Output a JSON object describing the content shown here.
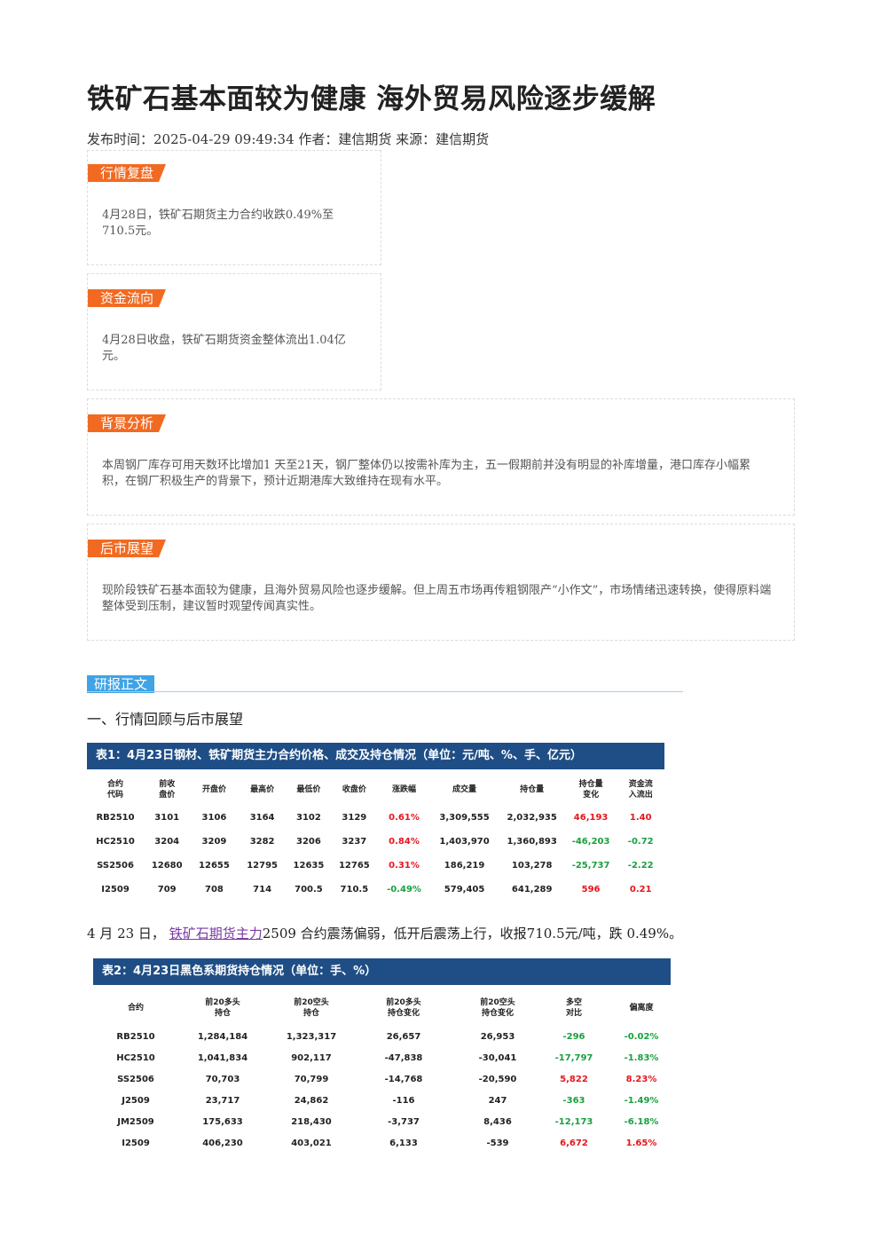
{
  "article": {
    "title": "铁矿石基本面较为健康 海外贸易风险逐步缓解",
    "meta": "发布时间：2025-04-29 09:49:34 作者：建信期货 来源：建信期货"
  },
  "sections": {
    "market_review": {
      "tag": "行情复盘",
      "text": "4月28日，铁矿石期货主力合约收跌0.49%至710.5元。"
    },
    "fund_flow": {
      "tag": "资金流向",
      "text": "4月28日收盘，铁矿石期货资金整体流出1.04亿元。"
    },
    "background": {
      "tag": "背景分析",
      "text": "本周钢厂库存可用天数环比增加1 天至21天，钢厂整体仍以按需补库为主，五一假期前并没有明显的补库增量，港口库存小幅累积，在钢厂积极生产的背景下，预计近期港库大致维持在现有水平。"
    },
    "outlook": {
      "tag": "后市展望",
      "text": "现阶段铁矿石基本面较为健康，且海外贸易风险也逐步缓解。但上周五市场再传粗钢限产“小作文”，市场情绪迅速转换，使得原料端整体受到压制，建议暂时观望传闻真实性。"
    }
  },
  "report": {
    "tab": "研报正文",
    "heading": "一、行情回顾与后市展望",
    "para_prefix": "4 月 23 日，",
    "para_link": "铁矿石期货主力",
    "para_suffix": "2509 合约震荡偏弱，低开后震荡上行，收报710.5元/吨，跌 0.49%。"
  },
  "table1": {
    "title": "表1：4月23日钢材、铁矿期货主力合约价格、成交及持仓情况（单位：元/吨、%、手、亿元）",
    "headers": [
      "合约\n代码",
      "前收\n盘价",
      "开盘价",
      "最高价",
      "最低价",
      "收盘价",
      "涨跌幅",
      "成交量",
      "持仓量",
      "持仓量\n变化",
      "资金流\n入流出"
    ],
    "rows": [
      [
        "RB2510",
        "3101",
        "3106",
        "3164",
        "3102",
        "3129",
        "0.61%",
        "3,309,555",
        "2,032,935",
        "46,193",
        "1.40"
      ],
      [
        "HC2510",
        "3204",
        "3209",
        "3282",
        "3206",
        "3237",
        "0.84%",
        "1,403,970",
        "1,360,893",
        "-46,203",
        "-0.72"
      ],
      [
        "SS2506",
        "12680",
        "12655",
        "12795",
        "12635",
        "12765",
        "0.31%",
        "186,219",
        "103,278",
        "-25,737",
        "-2.22"
      ],
      [
        "I2509",
        "709",
        "708",
        "714",
        "700.5",
        "710.5",
        "-0.49%",
        "579,405",
        "641,289",
        "596",
        "0.21"
      ]
    ]
  },
  "table2": {
    "title": "表2：4月23日黑色系期货持仓情况（单位：手、%）",
    "headers": [
      "合约",
      "前20多头\n持仓",
      "前20空头\n持仓",
      "前20多头\n持仓变化",
      "前20空头\n持仓变化",
      "多空\n对比",
      "偏离度"
    ],
    "rows": [
      [
        "RB2510",
        "1,284,184",
        "1,323,317",
        "26,657",
        "26,953",
        "-296",
        "-0.02%"
      ],
      [
        "HC2510",
        "1,041,834",
        "902,117",
        "-47,838",
        "-30,041",
        "-17,797",
        "-1.83%"
      ],
      [
        "SS2506",
        "70,703",
        "70,799",
        "-14,768",
        "-20,590",
        "5,822",
        "8.23%"
      ],
      [
        "J2509",
        "23,717",
        "24,862",
        "-116",
        "247",
        "-363",
        "-1.49%"
      ],
      [
        "JM2509",
        "175,633",
        "218,430",
        "-3,737",
        "8,436",
        "-12,173",
        "-6.18%"
      ],
      [
        "I2509",
        "406,230",
        "403,021",
        "6,133",
        "-539",
        "6,672",
        "1.65%"
      ]
    ]
  },
  "colors": {
    "tag_orange": "#f26a21",
    "tab_blue": "#3fa3e6",
    "table_header": "#1f4e86",
    "up_red": "#e8141b",
    "down_green": "#19a03f"
  }
}
